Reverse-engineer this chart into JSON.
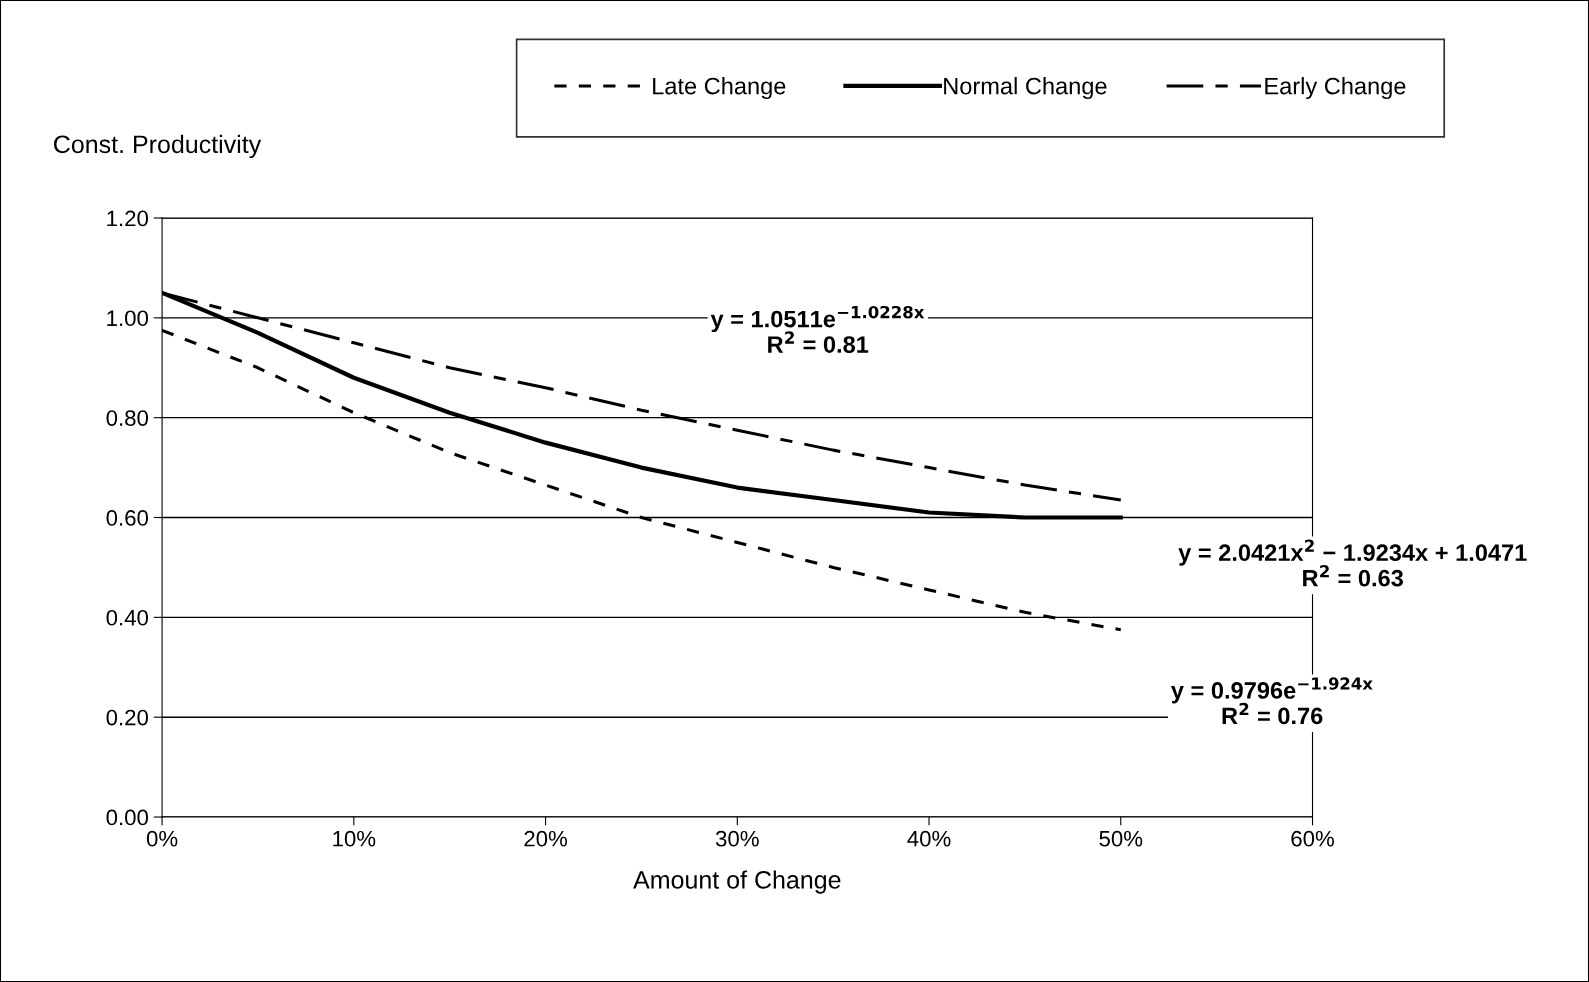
{
  "chart_data": {
    "type": "line",
    "xlabel": "Amount of Change",
    "ylabel": "Const. Productivity",
    "x": [
      0,
      0.05,
      0.1,
      0.15,
      0.2,
      0.25,
      0.3,
      0.35,
      0.4,
      0.45,
      0.5
    ],
    "series": [
      {
        "name": "Late Change",
        "color": "#000000",
        "line_style": "dotted",
        "values": [
          0.975,
          0.9,
          0.81,
          0.73,
          0.665,
          0.6,
          0.55,
          0.5,
          0.455,
          0.41,
          0.375
        ]
      },
      {
        "name": "Normal Change",
        "color": "#000000",
        "line_style": "solid",
        "values": [
          1.05,
          0.97,
          0.88,
          0.81,
          0.75,
          0.7,
          0.66,
          0.635,
          0.61,
          0.6,
          0.6
        ]
      },
      {
        "name": "Early Change",
        "color": "#000000",
        "line_style": "dashed",
        "values": [
          1.05,
          1.0,
          0.95,
          0.9,
          0.86,
          0.815,
          0.775,
          0.735,
          0.7,
          0.665,
          0.635
        ]
      }
    ],
    "xlim": [
      0,
      0.6
    ],
    "xticks": [
      {
        "value": 0,
        "label": "0%"
      },
      {
        "value": 0.1,
        "label": "10%"
      },
      {
        "value": 0.2,
        "label": "20%"
      },
      {
        "value": 0.3,
        "label": "30%"
      },
      {
        "value": 0.4,
        "label": "40%"
      },
      {
        "value": 0.5,
        "label": "50%"
      },
      {
        "value": 0.6,
        "label": "60%"
      }
    ],
    "ylim": [
      0,
      1.2
    ],
    "yticks": [
      {
        "value": 0,
        "label": "0.00"
      },
      {
        "value": 0.2,
        "label": "0.20"
      },
      {
        "value": 0.4,
        "label": "0.40"
      },
      {
        "value": 0.6,
        "label": "0.60"
      },
      {
        "value": 0.8,
        "label": "0.80"
      },
      {
        "value": 1.0,
        "label": "1.00"
      },
      {
        "value": 1.2,
        "label": "1.20"
      }
    ],
    "grid": "y",
    "legend": "top",
    "marker": "none",
    "annotations": [
      "y = 1.0511e$^{−1.0228x}$\nR$^{2}$ = 0.81",
      "y = 2.0421x$^{2}$ − 1.9234x + 1.0471\nR$^{2}$ = 0.63",
      "y = 0.9796e$^{−1.924x}$\nR$^{2}$ = 0.76"
    ]
  }
}
